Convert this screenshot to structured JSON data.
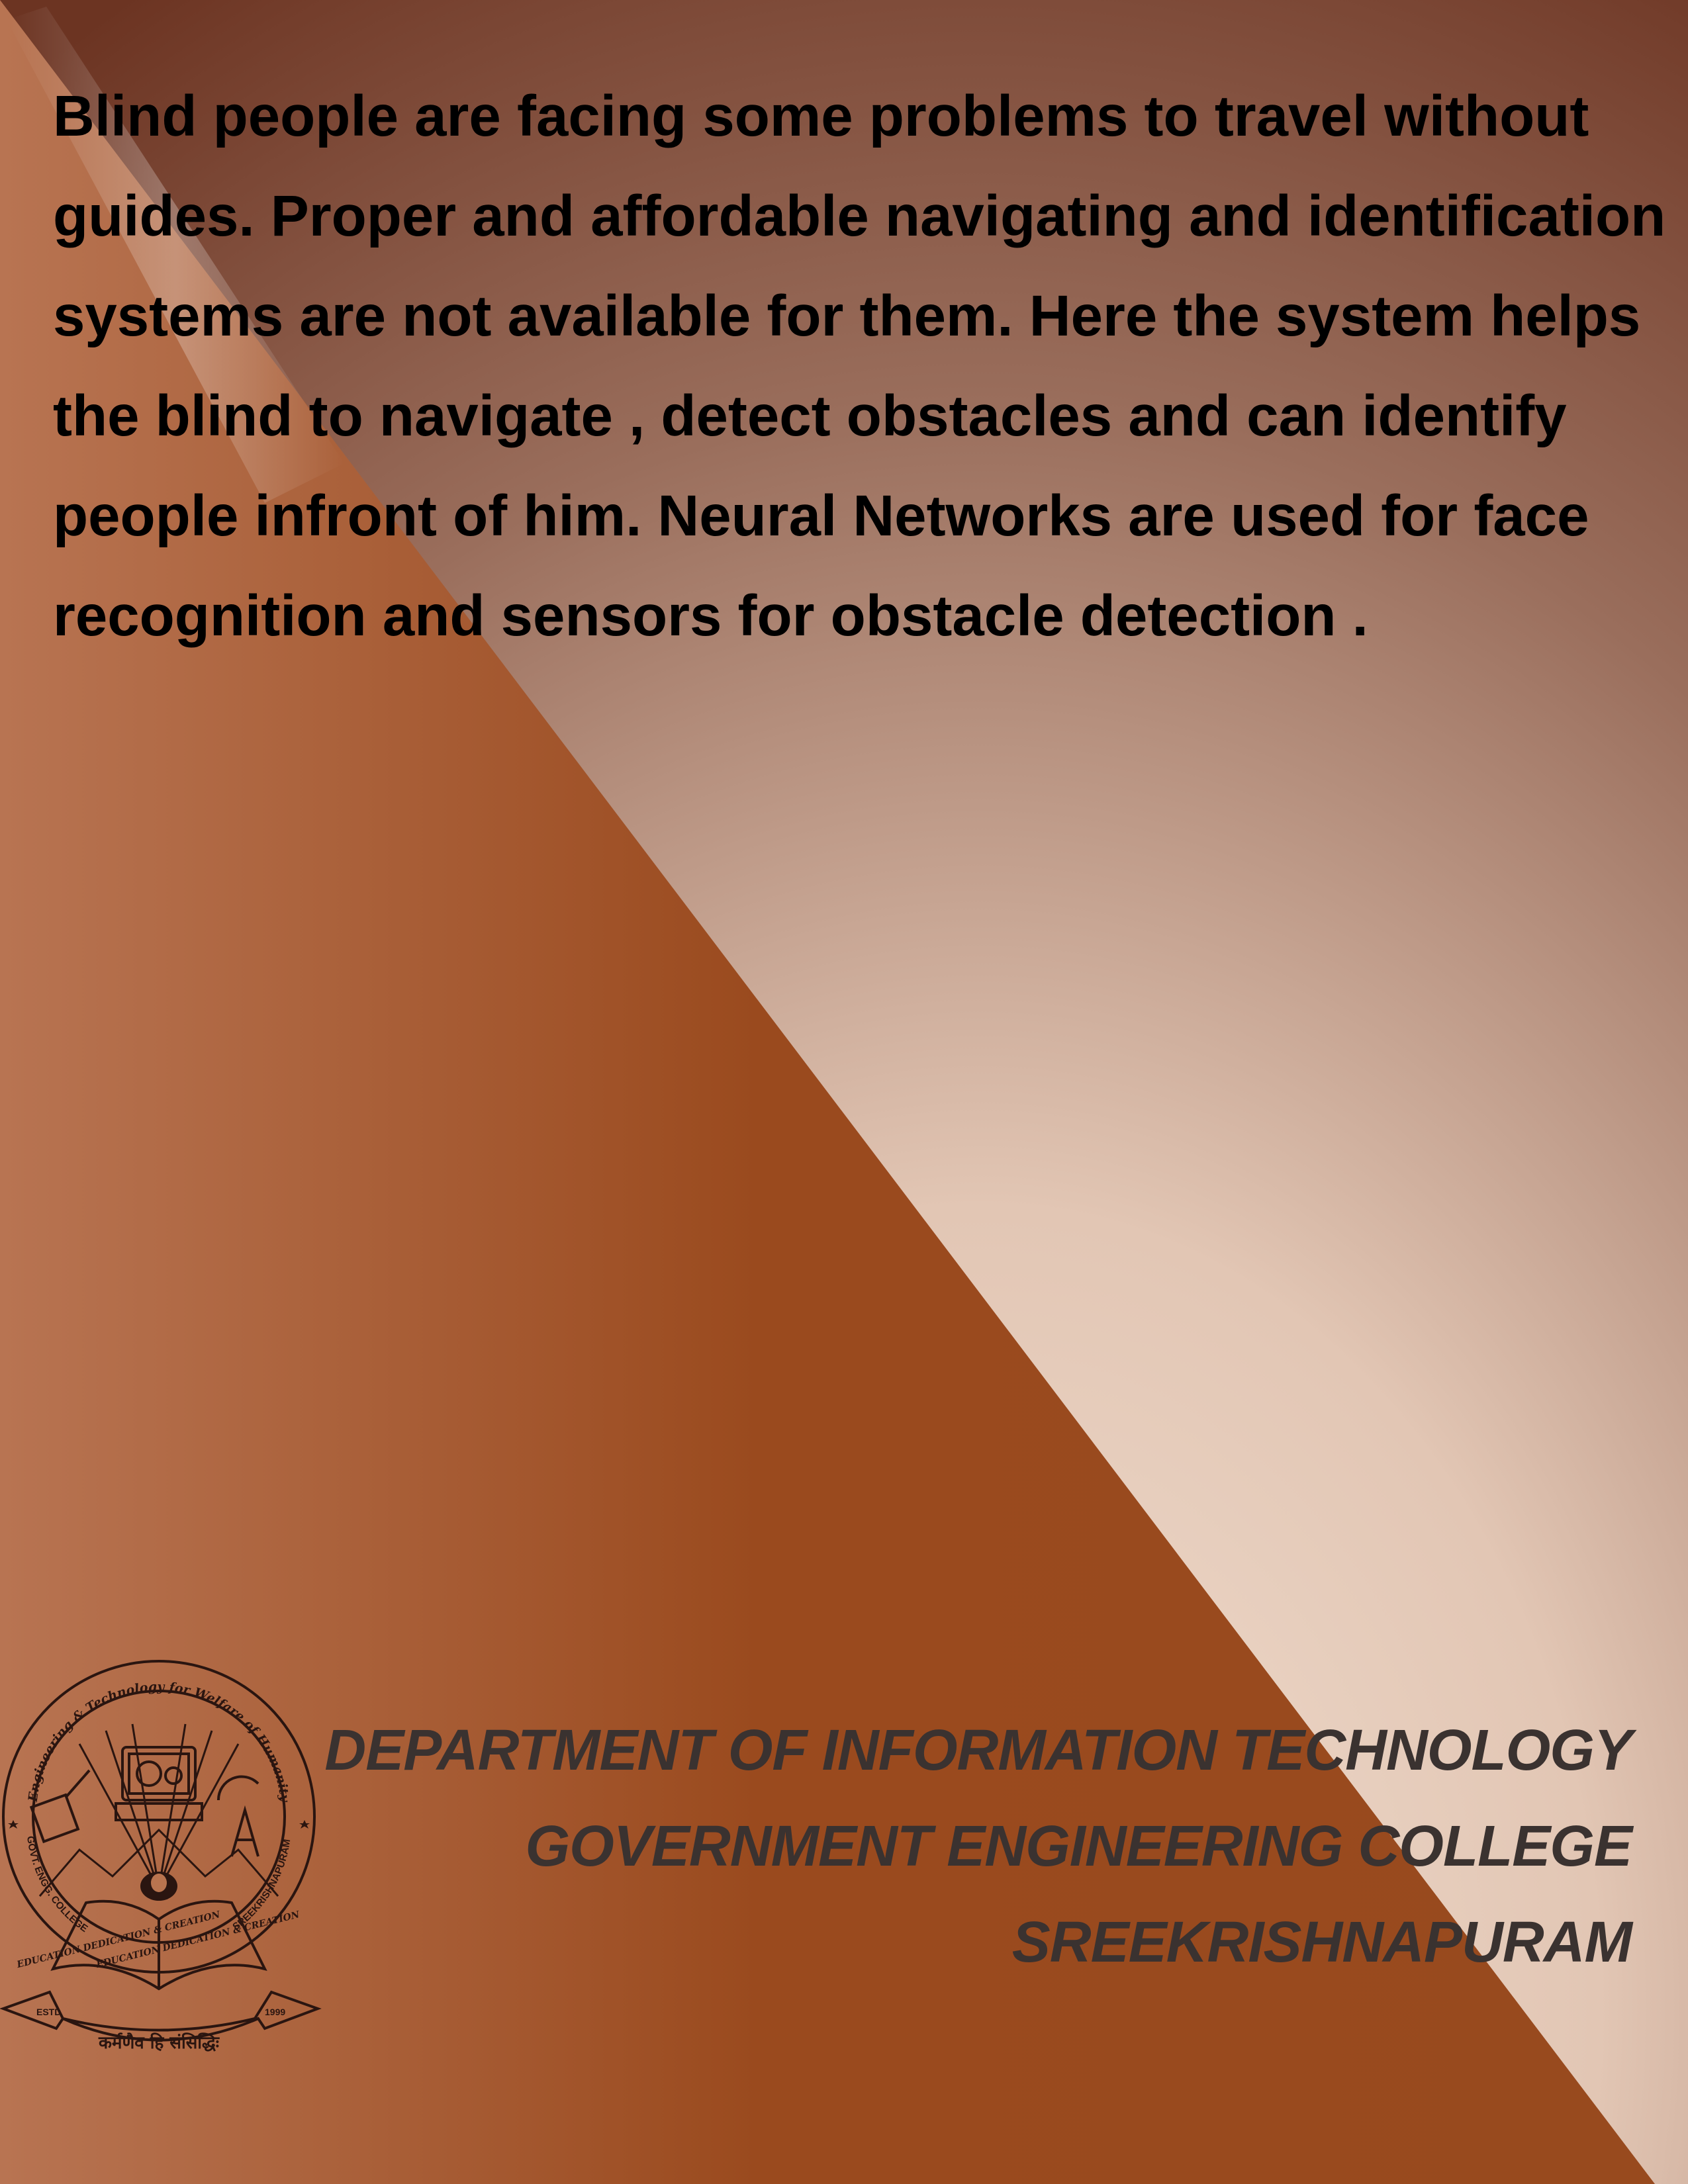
{
  "abstract": {
    "lines": [
      "Blind people are facing some problems to travel without",
      "guides. Proper and affordable navigating and identification",
      "systems are not available for them. Here the system helps",
      "the blind to navigate , detect obstacles and can identify",
      "people infront of him. Neural Networks are used for face",
      "recognition and sensors for obstacle detection ."
    ]
  },
  "footer": {
    "department": "DEPARTMENT OF INFORMATION TECHNOLOGY",
    "college": "GOVERNMENT ENGINEERING COLLEGE",
    "place": "SREEKRISHNAPURAM"
  },
  "emblem": {
    "motto_top": "Engineering & Technology for Welfare of Humanity",
    "left_text": "GOVT. ENGG. COLLEGE",
    "right_text": "SREEKRISHNAPURAM",
    "book_left": "EDUCATION DEDICATION & CREATION",
    "book_right": "EDUCATION DEDICATION & CREATION",
    "estd": "ESTD",
    "year": "1999",
    "motto_bottom": "कर्मणैव हि संसिद्धिः"
  },
  "colors": {
    "dark_brown": "#6e3220",
    "rust": "#9a4a1e",
    "light": "#f0dccd",
    "text": "#000000",
    "footer_text": "#3a3230"
  }
}
